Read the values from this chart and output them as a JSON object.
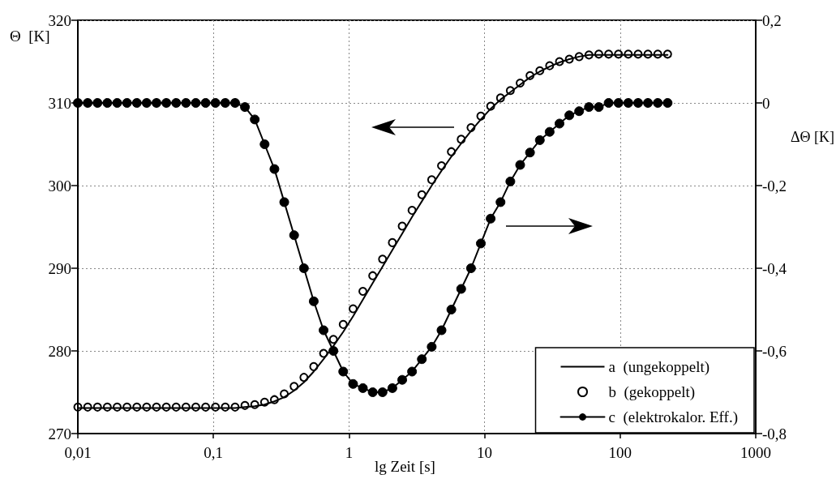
{
  "chart_data": {
    "type": "line",
    "xlabel": "lg Zeit [s]",
    "ylabel": "Θ  [K]",
    "y2label": "ΔΘ [K]",
    "log": "x",
    "grid": true,
    "legend": "bottom right",
    "x": [
      0.01,
      0.01182,
      0.01396,
      0.0165,
      0.0195,
      0.02304,
      0.02723,
      0.03217,
      0.03802,
      0.04493,
      0.05309,
      0.06273,
      0.07413,
      0.0876,
      0.1035,
      0.1223,
      0.1445,
      0.1708,
      0.2018,
      0.2385,
      0.2818,
      0.333,
      0.3936,
      0.4651,
      0.5495,
      0.6494,
      0.7674,
      0.9066,
      1.072,
      1.266,
      1.496,
      1.768,
      2.089,
      2.469,
      2.917,
      3.447,
      4.074,
      4.814,
      5.689,
      6.722,
      7.943,
      9.386,
      11.09,
      13.11,
      15.49,
      18.3,
      21.63,
      25.56,
      30.2,
      35.69,
      42.17,
      49.83,
      58.88,
      69.58,
      82.22,
      97.16,
      114.8,
      135.7,
      160.3,
      189.5,
      223.9
    ],
    "xlim": [
      0.01,
      1000
    ],
    "xticks": [
      {
        "value": 0.01,
        "label": "0,01"
      },
      {
        "value": 0.1,
        "label": "0,1"
      },
      1,
      10,
      100,
      1000
    ],
    "ylim": [
      270,
      320
    ],
    "yticks": [
      270,
      280,
      290,
      300,
      310,
      320
    ],
    "y2lim": [
      -0.8,
      0.2
    ],
    "y2ticks": [
      {
        "value": -0.8,
        "label": "-0,8"
      },
      {
        "value": -0.6,
        "label": "-0,6"
      },
      {
        "value": -0.4,
        "label": "-0,4"
      },
      {
        "value": -0.2,
        "label": "-0,2"
      },
      0,
      {
        "value": 0.2,
        "label": "0,2"
      }
    ],
    "series": [
      {
        "name": "a  (ungekoppelt)",
        "type": "line",
        "marker": "none",
        "color": "#000000",
        "values": [
          273.1,
          273.1,
          273.1,
          273.1,
          273.1,
          273.1,
          273.1,
          273.1,
          273.1,
          273.1,
          273.1,
          273.1,
          273.1,
          273.1,
          273.1,
          273.1,
          273.1,
          273.2,
          273.3,
          273.5,
          273.9,
          274.4,
          275.2,
          276.2,
          277.5,
          279.0,
          280.6,
          282.3,
          284.2,
          286.2,
          288.2,
          290.2,
          292.2,
          294.2,
          296.2,
          298.1,
          300.0,
          301.8,
          303.5,
          305.1,
          306.6,
          308.0,
          309.3,
          310.4,
          311.3,
          312.2,
          313.1,
          313.8,
          314.4,
          314.9,
          315.3,
          315.6,
          315.8,
          315.8,
          315.8,
          315.8,
          315.8,
          315.8,
          315.8,
          315.8,
          315.8
        ]
      },
      {
        "name": "b  (gekoppelt)",
        "type": "scatter",
        "marker": "circle",
        "color": "#000000",
        "values": [
          273.2,
          273.2,
          273.2,
          273.2,
          273.2,
          273.2,
          273.2,
          273.2,
          273.2,
          273.2,
          273.2,
          273.2,
          273.2,
          273.2,
          273.2,
          273.2,
          273.2,
          273.4,
          273.5,
          273.8,
          274.1,
          274.8,
          275.7,
          276.8,
          278.1,
          279.7,
          281.4,
          283.2,
          285.1,
          287.2,
          289.1,
          291.1,
          293.1,
          295.1,
          297.0,
          298.9,
          300.7,
          302.4,
          304.1,
          305.6,
          307.0,
          308.4,
          309.6,
          310.6,
          311.5,
          312.4,
          313.3,
          313.9,
          314.5,
          315.0,
          315.3,
          315.6,
          315.8,
          315.9,
          315.9,
          315.9,
          315.9,
          315.9,
          315.9,
          315.9,
          315.9
        ]
      },
      {
        "name": "c  (elektrokalor. Eff.)",
        "type": "line",
        "marker": "circle",
        "axis": "y2",
        "color": "#000000",
        "values": [
          0,
          0,
          0,
          0,
          0,
          0,
          0,
          0,
          0,
          0,
          0,
          0,
          0,
          0,
          0,
          0,
          0,
          -0.01,
          -0.04,
          -0.1,
          -0.16,
          -0.24,
          -0.32,
          -0.4,
          -0.48,
          -0.55,
          -0.6,
          -0.65,
          -0.68,
          -0.69,
          -0.7,
          -0.7,
          -0.69,
          -0.67,
          -0.65,
          -0.62,
          -0.59,
          -0.55,
          -0.5,
          -0.45,
          -0.4,
          -0.34,
          -0.28,
          -0.24,
          -0.19,
          -0.15,
          -0.12,
          -0.09,
          -0.07,
          -0.05,
          -0.03,
          -0.02,
          -0.01,
          -0.01,
          0,
          0,
          0,
          0,
          0,
          0,
          0
        ]
      }
    ]
  }
}
